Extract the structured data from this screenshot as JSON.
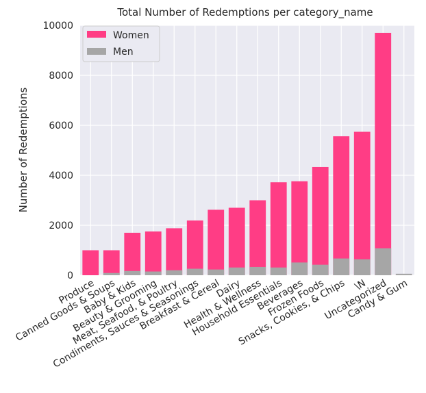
{
  "chart_data": {
    "type": "bar",
    "stacked": true,
    "title": "Total Number of Redemptions per category_name",
    "xlabel": "",
    "ylabel": "Number of Redemptions",
    "ylim": [
      0,
      10000
    ],
    "yticks": [
      0,
      2000,
      4000,
      6000,
      8000,
      10000
    ],
    "yticklabels": [
      "0",
      "2000",
      "4000",
      "6000",
      "8000",
      "10000"
    ],
    "grid": true,
    "legend_position": "top-left",
    "categories": [
      "Produce",
      "Canned Goods & Soups",
      "Baby & Kids",
      "Beauty & Grooming",
      "Meat, Seafood, & Poultry",
      "Condiments, Sauces & Seasonings",
      "Breakfast & Cereal",
      "Dairy",
      "Health & Wellness",
      "Household Essentials",
      "Beverages",
      "Frozen Foods",
      "Snacks, Cookies, & Chips",
      "\\N",
      "Uncategorized",
      "Candy & Gum"
    ],
    "series": [
      {
        "name": "Women",
        "color": "#ff3d85",
        "values": [
          1000,
          1000,
          1700,
          1750,
          1880,
          2190,
          2620,
          2700,
          3000,
          3720,
          3760,
          4330,
          5560,
          5740,
          9700,
          20
        ]
      },
      {
        "name": "Men",
        "color": "#a6a6a6",
        "values": [
          0,
          90,
          170,
          150,
          200,
          260,
          230,
          310,
          330,
          310,
          510,
          420,
          670,
          640,
          1080,
          60
        ]
      }
    ]
  }
}
